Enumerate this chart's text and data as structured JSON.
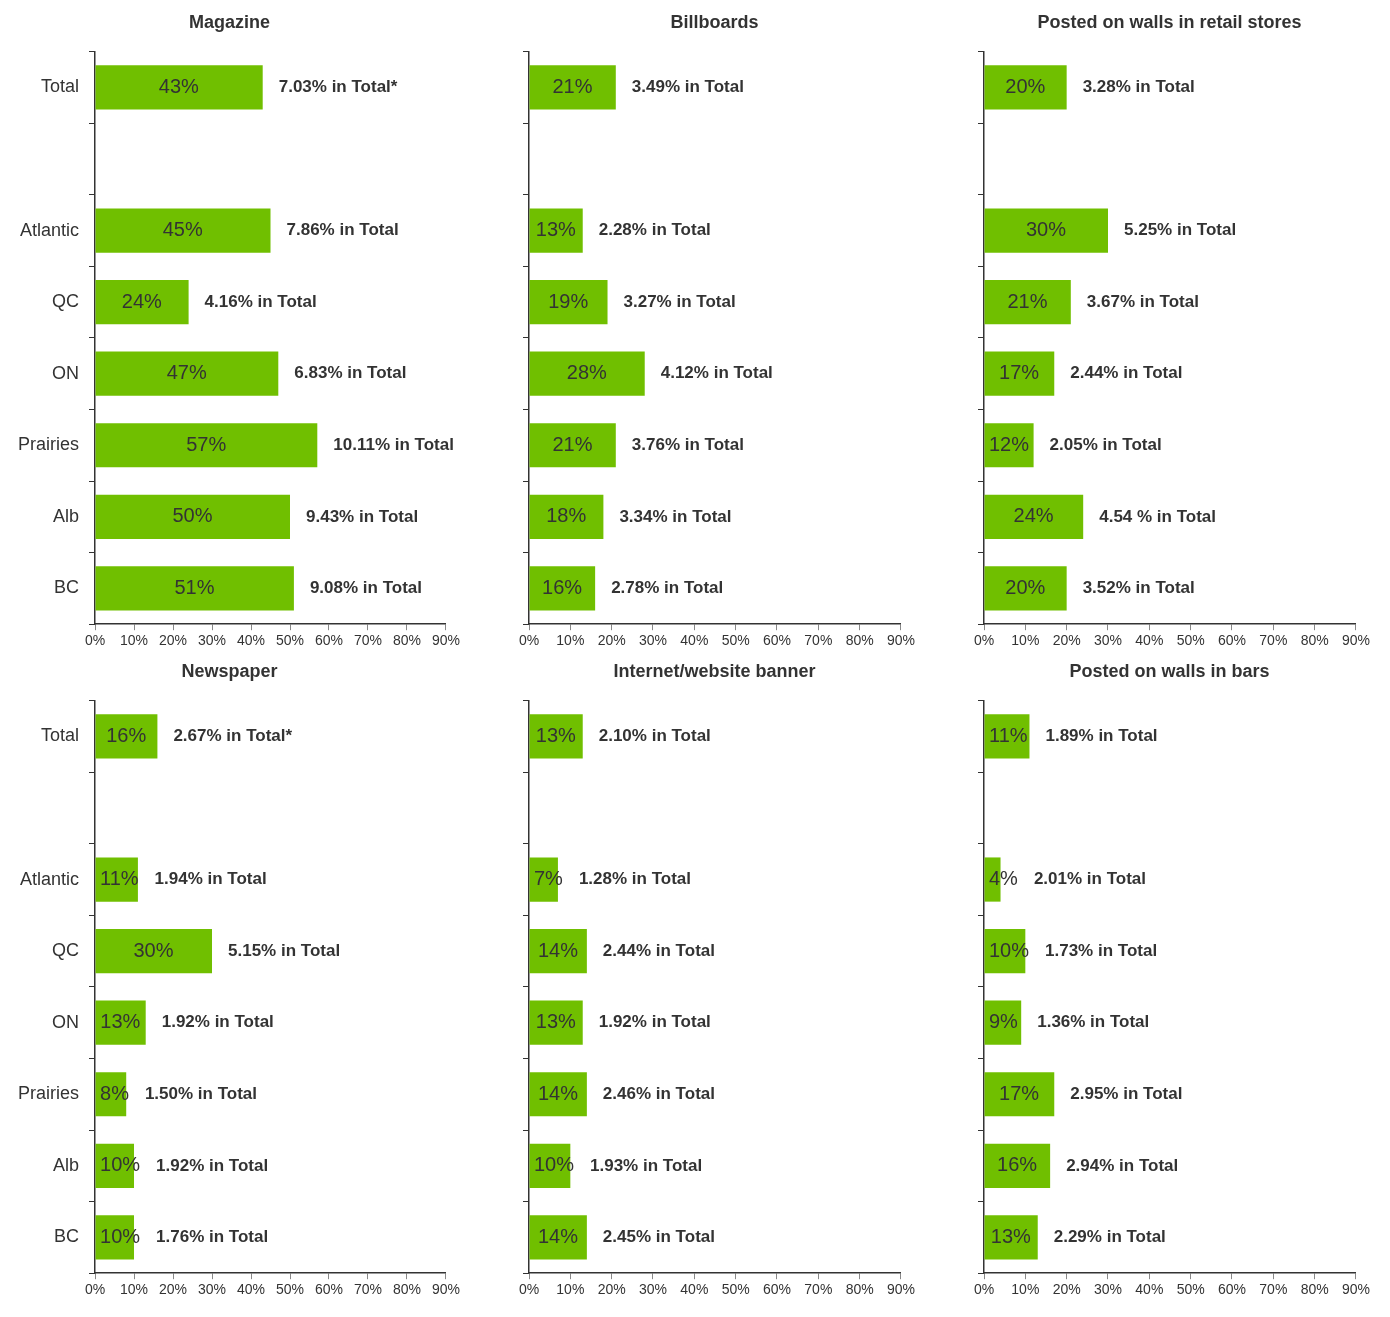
{
  "chart_data": [
    {
      "type": "bar",
      "orientation": "horizontal",
      "title": "Magazine",
      "categories": [
        "Total",
        null,
        "Atlantic",
        "QC",
        "ON",
        "Prairies",
        "Alb",
        "BC"
      ],
      "values": [
        43,
        null,
        45,
        24,
        47,
        57,
        50,
        51
      ],
      "value_labels": [
        "43%",
        null,
        "45%",
        "24%",
        "47%",
        "57%",
        "50%",
        "51%"
      ],
      "color": "#70bf00",
      "xlim": [
        0,
        90
      ],
      "xticks": [
        {
          "value": 0,
          "label": "0%"
        },
        {
          "value": 10,
          "label": "10%"
        },
        {
          "value": 20,
          "label": "20%"
        },
        {
          "value": 30,
          "label": "30%"
        },
        {
          "value": 40,
          "label": "40%"
        },
        {
          "value": 50,
          "label": "50%"
        },
        {
          "value": 60,
          "label": "60%"
        },
        {
          "value": 70,
          "label": "70%"
        },
        {
          "value": 80,
          "label": "80%"
        },
        {
          "value": 90,
          "label": "90%"
        }
      ],
      "grid": false,
      "legend": false,
      "annotations": [
        {
          "text": "7.03% in Total*",
          "x": 43,
          "y": "Total"
        },
        {
          "text": "7.86% in Total",
          "x": 45,
          "y": "Atlantic"
        },
        {
          "text": "4.16% in Total",
          "x": 24,
          "y": "QC"
        },
        {
          "text": "6.83% in Total",
          "x": 47,
          "y": "ON"
        },
        {
          "text": "10.11% in Total",
          "x": 57,
          "y": "Prairies"
        },
        {
          "text": "9.43% in Total",
          "x": 50,
          "y": "Alb"
        },
        {
          "text": "9.08% in Total",
          "x": 51,
          "y": "BC"
        }
      ]
    },
    {
      "type": "bar",
      "orientation": "horizontal",
      "title": "Billboards",
      "categories": [
        "Total",
        null,
        "Atlantic",
        "QC",
        "ON",
        "Prairies",
        "Alb",
        "BC"
      ],
      "values": [
        21,
        null,
        13,
        19,
        28,
        21,
        18,
        16
      ],
      "value_labels": [
        "21%",
        null,
        "13%",
        "19%",
        "28%",
        "21%",
        "18%",
        "16%"
      ],
      "color": "#70bf00",
      "xlim": [
        0,
        90
      ],
      "xticks": [
        {
          "value": 0,
          "label": "0%"
        },
        {
          "value": 10,
          "label": "10%"
        },
        {
          "value": 20,
          "label": "20%"
        },
        {
          "value": 30,
          "label": "30%"
        },
        {
          "value": 40,
          "label": "40%"
        },
        {
          "value": 50,
          "label": "50%"
        },
        {
          "value": 60,
          "label": "60%"
        },
        {
          "value": 70,
          "label": "70%"
        },
        {
          "value": 80,
          "label": "80%"
        },
        {
          "value": 90,
          "label": "90%"
        }
      ],
      "grid": false,
      "legend": false,
      "tick_labels": "x",
      "annotations": [
        {
          "text": "3.49% in Total",
          "x": 21,
          "y": "Total"
        },
        {
          "text": "2.28% in Total",
          "x": 13,
          "y": "Atlantic"
        },
        {
          "text": "3.27% in Total",
          "x": 19,
          "y": "QC"
        },
        {
          "text": "4.12% in Total",
          "x": 28,
          "y": "ON"
        },
        {
          "text": "3.76% in Total",
          "x": 21,
          "y": "Prairies"
        },
        {
          "text": "3.34% in Total",
          "x": 18,
          "y": "Alb"
        },
        {
          "text": "2.78% in Total",
          "x": 16,
          "y": "BC"
        }
      ]
    },
    {
      "type": "bar",
      "orientation": "horizontal",
      "title": "Posted on walls in retail stores",
      "categories": [
        "Total",
        null,
        "Atlantic",
        "QC",
        "ON",
        "Prairies",
        "Alb",
        "BC"
      ],
      "values": [
        20,
        null,
        30,
        21,
        17,
        12,
        24,
        20
      ],
      "value_labels": [
        "20%",
        null,
        "30%",
        "21%",
        "17%",
        "12%",
        "24%",
        "20%"
      ],
      "color": "#70bf00",
      "xlim": [
        0,
        90
      ],
      "xticks": [
        {
          "value": 0,
          "label": "0%"
        },
        {
          "value": 10,
          "label": "10%"
        },
        {
          "value": 20,
          "label": "20%"
        },
        {
          "value": 30,
          "label": "30%"
        },
        {
          "value": 40,
          "label": "40%"
        },
        {
          "value": 50,
          "label": "50%"
        },
        {
          "value": 60,
          "label": "60%"
        },
        {
          "value": 70,
          "label": "70%"
        },
        {
          "value": 80,
          "label": "80%"
        },
        {
          "value": 90,
          "label": "90%"
        }
      ],
      "grid": false,
      "legend": false,
      "tick_labels": "x",
      "annotations": [
        {
          "text": "3.28% in Total",
          "x": 20,
          "y": "Total"
        },
        {
          "text": "5.25% in Total",
          "x": 30,
          "y": "Atlantic"
        },
        {
          "text": "3.67% in Total",
          "x": 21,
          "y": "QC"
        },
        {
          "text": "2.44% in Total",
          "x": 17,
          "y": "ON"
        },
        {
          "text": "2.05% in Total",
          "x": 12,
          "y": "Prairies"
        },
        {
          "text": "4.54 % in Total",
          "x": 24,
          "y": "Alb"
        },
        {
          "text": "3.52% in Total",
          "x": 20,
          "y": "BC"
        }
      ]
    },
    {
      "type": "bar",
      "orientation": "horizontal",
      "title": "Newspaper",
      "categories": [
        "Total",
        null,
        "Atlantic",
        "QC",
        "ON",
        "Prairies",
        "Alb",
        "BC"
      ],
      "values": [
        16,
        null,
        11,
        30,
        13,
        8,
        10,
        10
      ],
      "value_labels": [
        "16%",
        null,
        "11%",
        "30%",
        "13%",
        "8%",
        "10%",
        "10%"
      ],
      "color": "#70bf00",
      "xlim": [
        0,
        90
      ],
      "xticks": [
        {
          "value": 0,
          "label": "0%"
        },
        {
          "value": 10,
          "label": "10%"
        },
        {
          "value": 20,
          "label": "20%"
        },
        {
          "value": 30,
          "label": "30%"
        },
        {
          "value": 40,
          "label": "40%"
        },
        {
          "value": 50,
          "label": "50%"
        },
        {
          "value": 60,
          "label": "60%"
        },
        {
          "value": 70,
          "label": "70%"
        },
        {
          "value": 80,
          "label": "80%"
        },
        {
          "value": 90,
          "label": "90%"
        }
      ],
      "grid": false,
      "legend": false,
      "annotations": [
        {
          "text": "2.67% in Total*",
          "x": 16,
          "y": "Total"
        },
        {
          "text": "1.94% in Total",
          "x": 11,
          "y": "Atlantic"
        },
        {
          "text": "5.15% in Total",
          "x": 30,
          "y": "QC"
        },
        {
          "text": "1.92% in Total",
          "x": 13,
          "y": "ON"
        },
        {
          "text": "1.50% in Total",
          "x": 8,
          "y": "Prairies"
        },
        {
          "text": "1.92% in Total",
          "x": 10,
          "y": "Alb"
        },
        {
          "text": "1.76% in Total",
          "x": 10,
          "y": "BC"
        }
      ]
    },
    {
      "type": "bar",
      "orientation": "horizontal",
      "title": "Internet/website banner",
      "categories": [
        "Total",
        null,
        "Atlantic",
        "QC",
        "ON",
        "Prairies",
        "Alb",
        "BC"
      ],
      "values": [
        13,
        null,
        7,
        14,
        13,
        14,
        10,
        14
      ],
      "value_labels": [
        "13%",
        null,
        "7%",
        "14%",
        "13%",
        "14%",
        "10%",
        "14%"
      ],
      "color": "#70bf00",
      "xlim": [
        0,
        90
      ],
      "xticks": [
        {
          "value": 0,
          "label": "0%"
        },
        {
          "value": 10,
          "label": "10%"
        },
        {
          "value": 20,
          "label": "20%"
        },
        {
          "value": 30,
          "label": "30%"
        },
        {
          "value": 40,
          "label": "40%"
        },
        {
          "value": 50,
          "label": "50%"
        },
        {
          "value": 60,
          "label": "60%"
        },
        {
          "value": 70,
          "label": "70%"
        },
        {
          "value": 80,
          "label": "80%"
        },
        {
          "value": 90,
          "label": "90%"
        }
      ],
      "grid": false,
      "legend": false,
      "tick_labels": "x",
      "annotations": [
        {
          "text": "2.10% in Total",
          "x": 13,
          "y": "Total"
        },
        {
          "text": "1.28% in Total",
          "x": 7,
          "y": "Atlantic"
        },
        {
          "text": "2.44% in Total",
          "x": 14,
          "y": "QC"
        },
        {
          "text": "1.92% in Total",
          "x": 13,
          "y": "ON"
        },
        {
          "text": "2.46% in Total",
          "x": 14,
          "y": "Prairies"
        },
        {
          "text": "1.93% in Total",
          "x": 10,
          "y": "Alb"
        },
        {
          "text": "2.45% in Total",
          "x": 14,
          "y": "BC"
        }
      ]
    },
    {
      "type": "bar",
      "orientation": "horizontal",
      "title": "Posted on walls in bars",
      "categories": [
        "Total",
        null,
        "Atlantic",
        "QC",
        "ON",
        "Prairies",
        "Alb",
        "BC"
      ],
      "values": [
        11,
        null,
        4,
        10,
        9,
        17,
        16,
        13
      ],
      "value_labels": [
        "11%",
        null,
        "4%",
        "10%",
        "9%",
        "17%",
        "16%",
        "13%"
      ],
      "color": "#70bf00",
      "xlim": [
        0,
        90
      ],
      "xticks": [
        {
          "value": 0,
          "label": "0%"
        },
        {
          "value": 10,
          "label": "10%"
        },
        {
          "value": 20,
          "label": "20%"
        },
        {
          "value": 30,
          "label": "30%"
        },
        {
          "value": 40,
          "label": "40%"
        },
        {
          "value": 50,
          "label": "50%"
        },
        {
          "value": 60,
          "label": "60%"
        },
        {
          "value": 70,
          "label": "70%"
        },
        {
          "value": 80,
          "label": "80%"
        },
        {
          "value": 90,
          "label": "90%"
        }
      ],
      "grid": false,
      "legend": false,
      "tick_labels": "x",
      "annotations": [
        {
          "text": "1.89% in Total",
          "x": 11,
          "y": "Total"
        },
        {
          "text": "2.01% in Total",
          "x": 4,
          "y": "Atlantic"
        },
        {
          "text": "1.73% in Total",
          "x": 10,
          "y": "QC"
        },
        {
          "text": "1.36% in Total",
          "x": 9,
          "y": "ON"
        },
        {
          "text": "2.95% in Total",
          "x": 17,
          "y": "Prairies"
        },
        {
          "text": "2.94% in Total",
          "x": 16,
          "y": "Alb"
        },
        {
          "text": "2.29% in Total",
          "x": 13,
          "y": "BC"
        }
      ]
    }
  ]
}
